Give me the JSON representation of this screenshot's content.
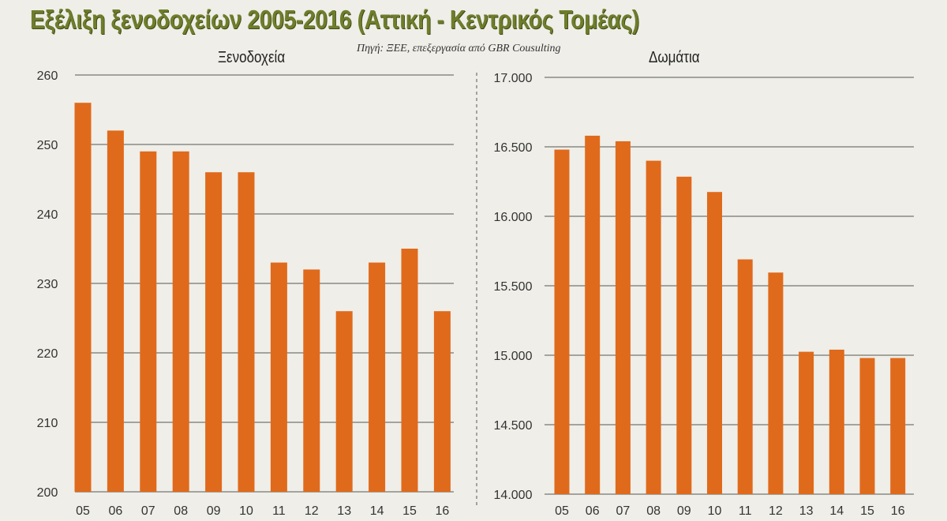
{
  "title": "Εξέλιξη ξενοδοχείων 2005-2016 (Αττική - Κεντρικός Τομέας)",
  "source": "Πηγή: ΞΕΕ, επεξεργασία από GBR Cousulting",
  "bar_color": "#e06a1b",
  "chart_data": [
    {
      "type": "bar",
      "title": "Ξενοδοχεία",
      "categories": [
        "05",
        "06",
        "07",
        "08",
        "09",
        "10",
        "11",
        "12",
        "13",
        "14",
        "15",
        "16"
      ],
      "values": [
        256,
        252,
        249,
        249,
        246,
        246,
        233,
        232,
        226,
        233,
        235,
        226
      ],
      "ylim": [
        200,
        260
      ],
      "yticks": [
        200,
        210,
        220,
        230,
        240,
        250,
        260
      ],
      "ytick_labels": [
        "200",
        "210",
        "220",
        "230",
        "240",
        "250",
        "260"
      ],
      "grid": true
    },
    {
      "type": "bar",
      "title": "Δωμάτια",
      "categories": [
        "05",
        "06",
        "07",
        "08",
        "09",
        "10",
        "11",
        "12",
        "13",
        "14",
        "15",
        "16"
      ],
      "values": [
        16480,
        16580,
        16540,
        16400,
        16285,
        16175,
        15690,
        15595,
        15025,
        15040,
        14980,
        14980
      ],
      "ylim": [
        14000,
        17000
      ],
      "yticks": [
        14000,
        14500,
        15000,
        15500,
        16000,
        16500,
        17000
      ],
      "ytick_labels": [
        "14.000",
        "14.500",
        "15.000",
        "15.500",
        "16.000",
        "16.500",
        "17.000"
      ],
      "grid": true
    }
  ]
}
